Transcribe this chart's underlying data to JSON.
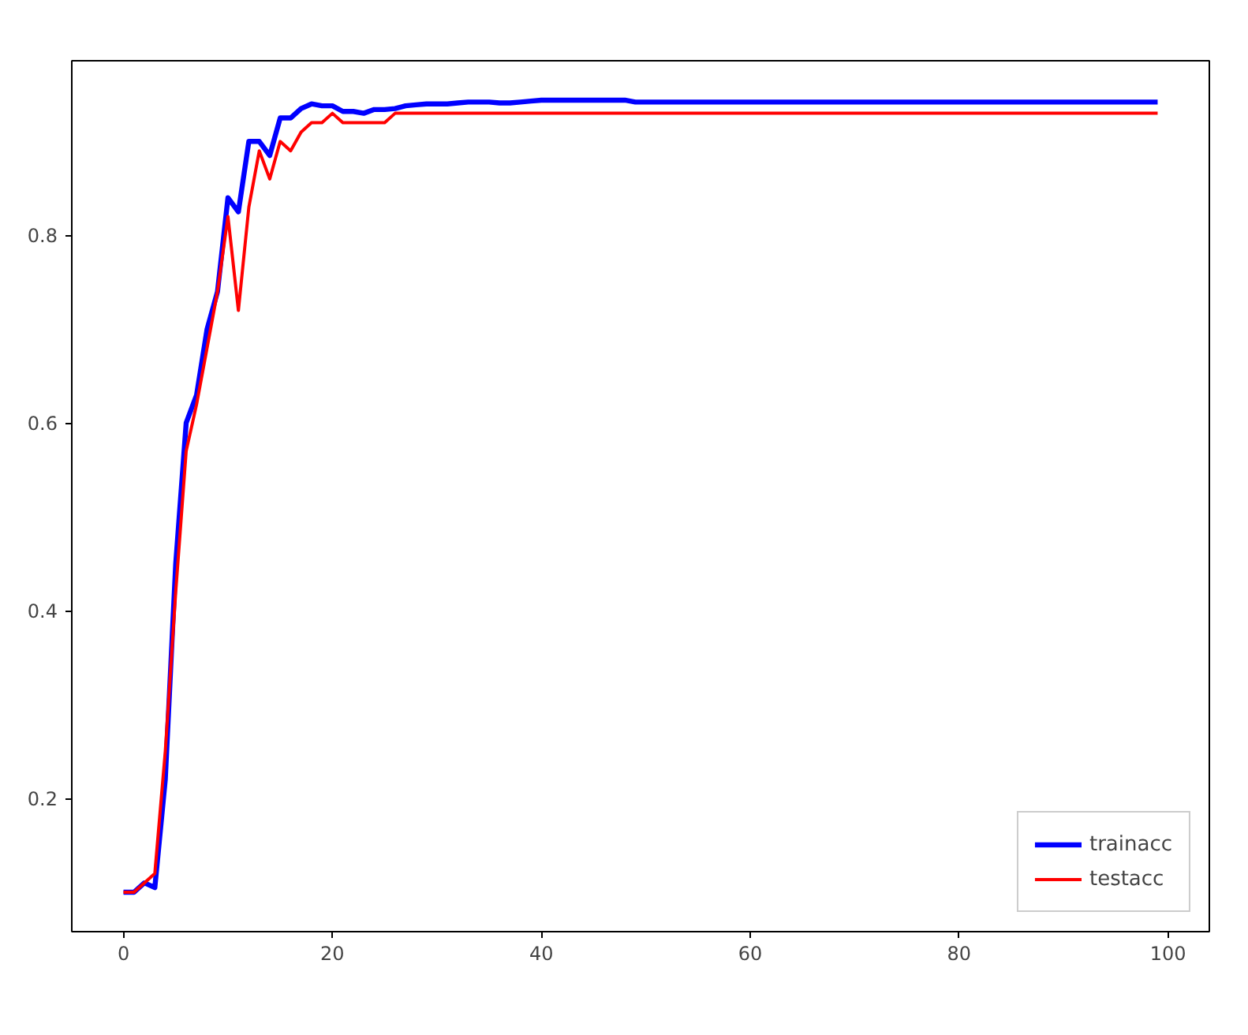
{
  "chart_data": {
    "type": "line",
    "x": [
      0,
      1,
      2,
      3,
      4,
      5,
      6,
      7,
      8,
      9,
      10,
      11,
      12,
      13,
      14,
      15,
      16,
      17,
      18,
      19,
      20,
      21,
      22,
      23,
      24,
      25,
      26,
      27,
      28,
      29,
      30,
      31,
      32,
      33,
      34,
      35,
      36,
      37,
      38,
      39,
      40,
      41,
      42,
      43,
      44,
      45,
      46,
      47,
      48,
      49,
      50,
      51,
      52,
      53,
      54,
      55,
      56,
      57,
      58,
      59,
      60,
      61,
      62,
      63,
      64,
      65,
      66,
      67,
      68,
      69,
      70,
      71,
      72,
      73,
      74,
      75,
      76,
      77,
      78,
      79,
      80,
      81,
      82,
      83,
      84,
      85,
      86,
      87,
      88,
      89,
      90,
      91,
      92,
      93,
      94,
      95,
      96,
      97,
      98,
      99
    ],
    "series": [
      {
        "name": "trainacc",
        "color": "#0000ff",
        "values": [
          0.1,
          0.1,
          0.11,
          0.105,
          0.22,
          0.45,
          0.6,
          0.63,
          0.7,
          0.74,
          0.84,
          0.825,
          0.9,
          0.9,
          0.885,
          0.925,
          0.925,
          0.935,
          0.94,
          0.938,
          0.938,
          0.932,
          0.932,
          0.93,
          0.934,
          0.934,
          0.935,
          0.938,
          0.939,
          0.94,
          0.94,
          0.94,
          0.941,
          0.942,
          0.942,
          0.942,
          0.941,
          0.941,
          0.942,
          0.943,
          0.944,
          0.944,
          0.944,
          0.944,
          0.944,
          0.944,
          0.944,
          0.944,
          0.944,
          0.942,
          0.942,
          0.942,
          0.942,
          0.942,
          0.942,
          0.942,
          0.942,
          0.942,
          0.942,
          0.942,
          0.942,
          0.942,
          0.942,
          0.942,
          0.942,
          0.942,
          0.942,
          0.942,
          0.942,
          0.942,
          0.942,
          0.942,
          0.942,
          0.942,
          0.942,
          0.942,
          0.942,
          0.942,
          0.942,
          0.942,
          0.942,
          0.942,
          0.942,
          0.942,
          0.942,
          0.942,
          0.942,
          0.942,
          0.942,
          0.942,
          0.942,
          0.942,
          0.942,
          0.942,
          0.942,
          0.942,
          0.942,
          0.942,
          0.942,
          0.942
        ]
      },
      {
        "name": "testacc",
        "color": "#ff0000",
        "values": [
          0.1,
          0.1,
          0.11,
          0.12,
          0.25,
          0.42,
          0.57,
          0.62,
          0.68,
          0.74,
          0.82,
          0.72,
          0.83,
          0.89,
          0.86,
          0.9,
          0.89,
          0.91,
          0.92,
          0.92,
          0.93,
          0.92,
          0.92,
          0.92,
          0.92,
          0.92,
          0.93,
          0.93,
          0.93,
          0.93,
          0.93,
          0.93,
          0.93,
          0.93,
          0.93,
          0.93,
          0.93,
          0.93,
          0.93,
          0.93,
          0.93,
          0.93,
          0.93,
          0.93,
          0.93,
          0.93,
          0.93,
          0.93,
          0.93,
          0.93,
          0.93,
          0.93,
          0.93,
          0.93,
          0.93,
          0.93,
          0.93,
          0.93,
          0.93,
          0.93,
          0.93,
          0.93,
          0.93,
          0.93,
          0.93,
          0.93,
          0.93,
          0.93,
          0.93,
          0.93,
          0.93,
          0.93,
          0.93,
          0.93,
          0.93,
          0.93,
          0.93,
          0.93,
          0.93,
          0.93,
          0.93,
          0.93,
          0.93,
          0.93,
          0.93,
          0.93,
          0.93,
          0.93,
          0.93,
          0.93,
          0.93,
          0.93,
          0.93,
          0.93,
          0.93,
          0.93,
          0.93,
          0.93,
          0.93,
          0.93
        ]
      }
    ],
    "xlim": [
      -4.95,
      103.95
    ],
    "ylim": [
      0.058,
      0.986
    ],
    "xticks": [
      0,
      20,
      40,
      60,
      80,
      100
    ],
    "yticks": [
      {
        "value": 0.2,
        "label": "0.2"
      },
      {
        "value": 0.4,
        "label": "0.4"
      },
      {
        "value": 0.6,
        "label": "0.6"
      },
      {
        "value": 0.8,
        "label": "0.8"
      }
    ],
    "grid": false,
    "legend": "bottom right",
    "marker": "none",
    "line_style": "solid"
  }
}
